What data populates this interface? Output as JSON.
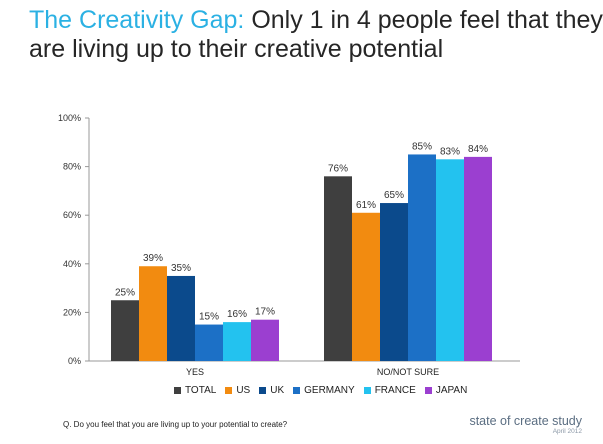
{
  "title": {
    "accent": "The Creativity Gap:",
    "rest_line1": "Only 1 in 4 people feel that they",
    "line2": "are living up to their creative potential"
  },
  "question": "Q. Do you feel that you are living up to your potential to create?",
  "brand": {
    "name": "state of create study",
    "date": "April 2012"
  },
  "chart_data": {
    "type": "bar",
    "categories": [
      "YES",
      "NO/NOT SURE"
    ],
    "series": [
      {
        "name": "TOTAL",
        "color": "#3f3f3f",
        "values": [
          25,
          76
        ]
      },
      {
        "name": "US",
        "color": "#f28b10",
        "values": [
          39,
          61
        ]
      },
      {
        "name": "UK",
        "color": "#0b4a8c",
        "values": [
          35,
          65
        ]
      },
      {
        "name": "GERMANY",
        "color": "#1c70c6",
        "values": [
          15,
          85
        ]
      },
      {
        "name": "FRANCE",
        "color": "#23c2ef",
        "values": [
          16,
          83
        ]
      },
      {
        "name": "JAPAN",
        "color": "#9b3fd0",
        "values": [
          17,
          84
        ]
      }
    ],
    "data_labels": [
      [
        "25%",
        "39%",
        "35%",
        "15%",
        "16%",
        "17%"
      ],
      [
        "76%",
        "61%",
        "65%",
        "85%",
        "83%",
        "84%"
      ]
    ],
    "yticks": [
      "0%",
      "20%",
      "40%",
      "60%",
      "80%",
      "100%"
    ],
    "ylim": [
      0,
      100
    ],
    "grid": false,
    "legend": "bottom"
  }
}
